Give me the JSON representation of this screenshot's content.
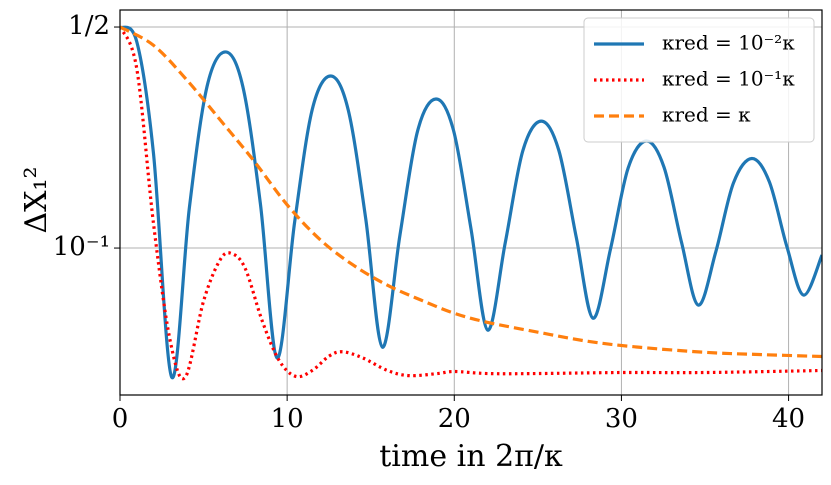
{
  "chart_data": {
    "type": "line",
    "xlabel": "time in 2π/κ",
    "ylabel": "ΔX₁²",
    "xlim": [
      0,
      42
    ],
    "ylim": [
      0.0343,
      0.566
    ],
    "log_y": true,
    "xticks": [
      0,
      10,
      20,
      30,
      40
    ],
    "yticks": [
      {
        "value": 0.5,
        "label": "1/2"
      },
      {
        "value": 0.1,
        "label": "10⁻¹"
      }
    ],
    "grid": true,
    "legend_position": "upper-right",
    "series": [
      {
        "name": "κred = 10⁻²κ",
        "color": "#1f77b4",
        "linestyle": "solid",
        "x": [
          0,
          1,
          2,
          3.1,
          4.15,
          5.2,
          6.3,
          7.35,
          8.4,
          9.4,
          10.45,
          11.5,
          12.6,
          13.65,
          14.7,
          15.7,
          16.75,
          17.8,
          18.9,
          19.95,
          21,
          22,
          23.05,
          24.1,
          25.2,
          26.25,
          27.3,
          28.3,
          29.35,
          30.4,
          31.5,
          32.55,
          33.6,
          34.6,
          35.65,
          36.7,
          37.8,
          38.85,
          39.9,
          40.9,
          42
        ],
        "values": [
          0.5,
          0.45,
          0.2,
          0.039,
          0.134,
          0.323,
          0.417,
          0.324,
          0.138,
          0.0449,
          0.121,
          0.274,
          0.35,
          0.274,
          0.124,
          0.0486,
          0.11,
          0.234,
          0.296,
          0.236,
          0.115,
          0.055,
          0.104,
          0.203,
          0.252,
          0.204,
          0.108,
          0.06,
          0.0995,
          0.179,
          0.218,
          0.18,
          0.104,
          0.066,
          0.0975,
          0.1605,
          0.192,
          0.162,
          0.101,
          0.071,
          0.095
        ]
      },
      {
        "name": "κred = 10⁻¹κ",
        "color": "#ff0000",
        "linestyle": "dotted",
        "x": [
          0,
          1,
          2,
          3,
          3.9,
          5,
          6,
          6.7,
          7.5,
          8.5,
          9.5,
          10.5,
          11.5,
          12.5,
          13.3,
          14.5,
          16,
          17.3,
          19,
          20,
          22,
          25,
          30,
          35,
          42
        ],
        "values": [
          0.5,
          0.37,
          0.12,
          0.051,
          0.039,
          0.068,
          0.092,
          0.096,
          0.086,
          0.059,
          0.0443,
          0.0393,
          0.041,
          0.0455,
          0.047,
          0.045,
          0.041,
          0.0395,
          0.0401,
          0.0407,
          0.0401,
          0.0401,
          0.0404,
          0.0404,
          0.041
        ]
      },
      {
        "name": "κred = κ",
        "color": "#ff7f0e",
        "linestyle": "dashed",
        "x": [
          0,
          2,
          4,
          6,
          8,
          10,
          12,
          14,
          16,
          18,
          20,
          22,
          25,
          28,
          31,
          35,
          38,
          42
        ],
        "values": [
          0.5,
          0.438,
          0.34,
          0.254,
          0.189,
          0.137,
          0.106,
          0.088,
          0.0763,
          0.0685,
          0.0622,
          0.0582,
          0.0542,
          0.0507,
          0.0486,
          0.0468,
          0.0461,
          0.0454
        ]
      }
    ]
  }
}
